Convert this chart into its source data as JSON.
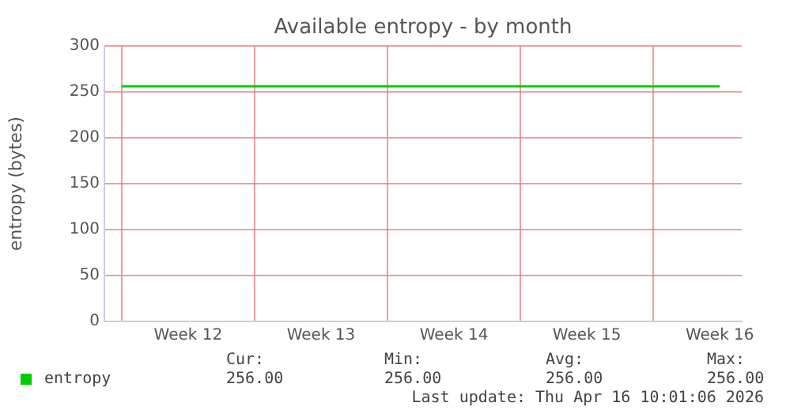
{
  "chart_data": {
    "type": "line",
    "title": "Available entropy - by month",
    "ylabel": "entropy (bytes)",
    "categories": [
      null,
      "Week 12",
      null,
      "Week 13",
      null,
      "Week 14",
      null,
      "Week 15",
      null,
      "Week 16"
    ],
    "series": [
      {
        "name": "entropy",
        "color": "#00cc00",
        "values": [
          256,
          256,
          256,
          256,
          256,
          256,
          256,
          256,
          256,
          256
        ]
      }
    ],
    "ylim": [
      0,
      300
    ],
    "yticks": [
      0,
      50,
      100,
      150,
      200,
      250,
      300
    ],
    "grid": true,
    "legend": "bottom left",
    "marker": "none",
    "line_style": "solid",
    "annotations": [
      "Cur:",
      "Min:",
      "Avg:",
      "Max:",
      "256.00",
      "256.00",
      "256.00",
      "256.00",
      "Last update: Thu Apr 16 10:01:06 2026"
    ]
  }
}
